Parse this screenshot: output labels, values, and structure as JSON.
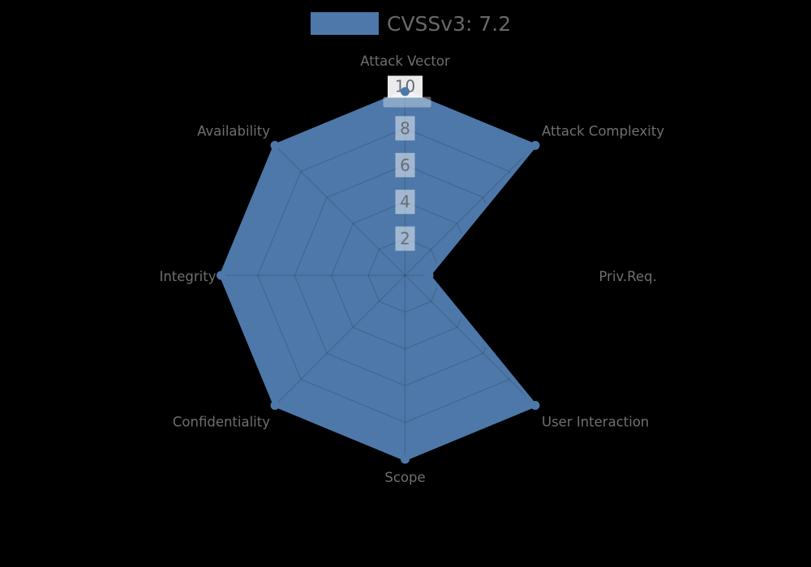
{
  "legend": {
    "label": "CVSSv3: 7.2",
    "swatch_color": "#4d78a9"
  },
  "chart_data": {
    "type": "radar",
    "title": "CVSSv3: 7.2",
    "legend_position": "top-center",
    "categories": [
      "Attack Vector",
      "Attack Complexity",
      "Priv.Req.",
      "User Interaction",
      "Scope",
      "Confidentiality",
      "Integrity",
      "Availability"
    ],
    "series": [
      {
        "name": "CVSSv3: 7.2",
        "values": [
          10,
          10,
          1.3,
          10,
          10,
          10,
          10,
          10
        ]
      }
    ],
    "radial_ticks": [
      2,
      4,
      6,
      8,
      10
    ],
    "range": [
      0,
      10
    ],
    "grid": true,
    "colors": {
      "fill": "#4d78a9",
      "axis_label": "#6f6f6f",
      "tick_label": "#666d78",
      "tick_box": "rgba(255,255,255,0.48)",
      "tick_box_max": "rgba(255,255,255,0.92)",
      "tick_underlay": "rgba(255,255,255,0.35)",
      "web_line": "rgba(0,0,0,0.15)",
      "background": "#000000"
    }
  }
}
